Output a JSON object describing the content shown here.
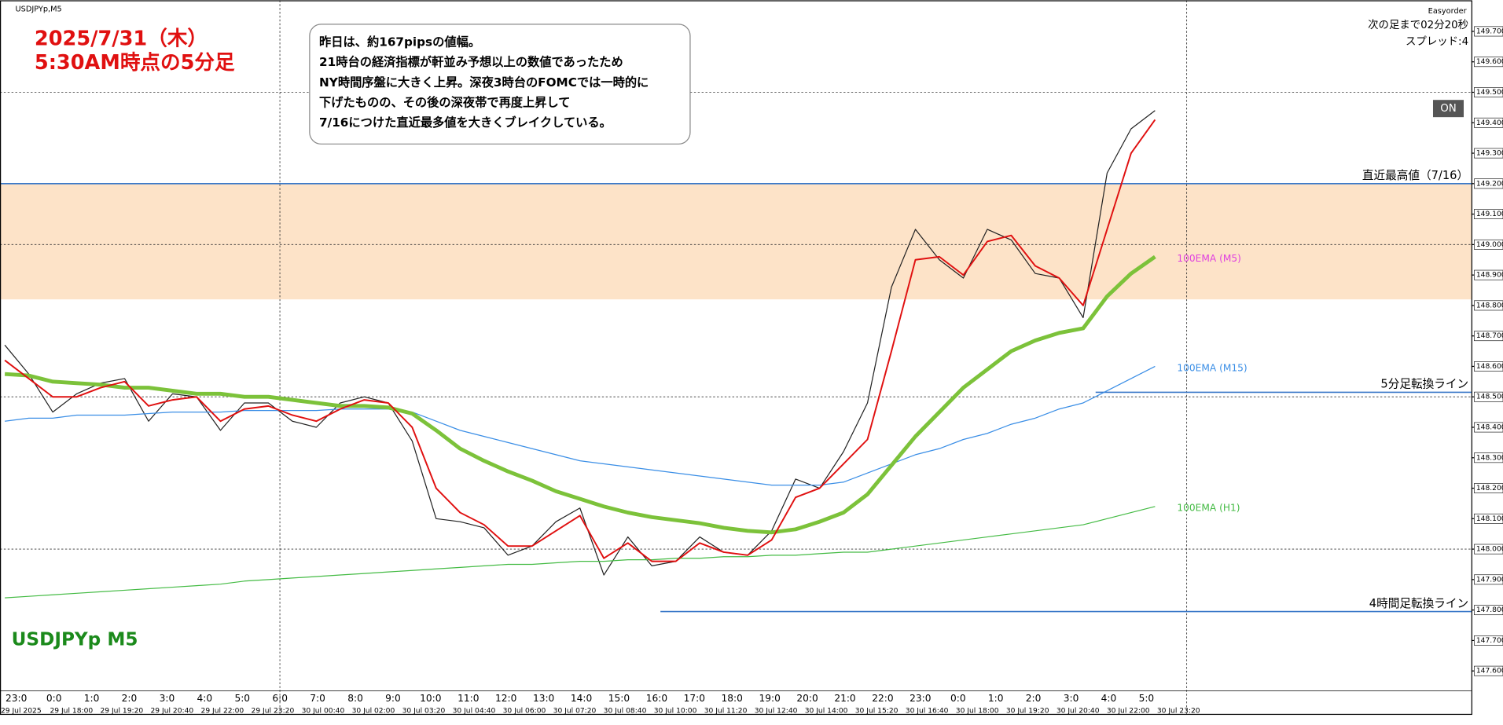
{
  "chart_data": {
    "type": "line",
    "symbol_label": "USDJPYp,M5",
    "title_lines": [
      "2025/7/31（木）",
      "5:30AM時点の5分足"
    ],
    "watermark": "USDJPYp M5",
    "panel_lines": [
      "Easyorder",
      "次の足まで02分20秒",
      "スプレッド:4"
    ],
    "button": "ON",
    "annotation_lines": [
      "昨日は、約167pipsの値幅。",
      "21時台の経済指標が軒並み予想以上の数値であったため",
      "NY時間序盤に大きく上昇。深夜3時台のFOMCでは一時的に",
      "下げたものの、その後の深夜帯で再度上昇して",
      "7/16につけた直近最多値を大きくブレイクしている。"
    ],
    "ylim": [
      147.459,
      149.802
    ],
    "yticks": [
      {
        "value": 149.7,
        "label": "149.700"
      },
      {
        "value": 149.6,
        "label": "149.600"
      },
      {
        "value": 149.5,
        "label": "149.500"
      },
      {
        "value": 149.4,
        "label": "149.400"
      },
      {
        "value": 149.3,
        "label": "149.300"
      },
      {
        "value": 149.2,
        "label": "149.200"
      },
      {
        "value": 149.1,
        "label": "149.100"
      },
      {
        "value": 149.0,
        "label": "149.000"
      },
      {
        "value": 148.9,
        "label": "148.900"
      },
      {
        "value": 148.8,
        "label": "148.800"
      },
      {
        "value": 148.7,
        "label": "148.700"
      },
      {
        "value": 148.6,
        "label": "148.600"
      },
      {
        "value": 148.5,
        "label": "148.500"
      },
      {
        "value": 148.4,
        "label": "148.400"
      },
      {
        "value": 148.3,
        "label": "148.300"
      },
      {
        "value": 148.2,
        "label": "148.200"
      },
      {
        "value": 148.1,
        "label": "148.100"
      },
      {
        "value": 148.0,
        "label": "148.000"
      },
      {
        "value": 147.9,
        "label": "147.900"
      },
      {
        "value": 147.8,
        "label": "147.800"
      },
      {
        "value": 147.7,
        "label": "147.700"
      },
      {
        "value": 147.6,
        "label": "147.600"
      }
    ],
    "dotted_levels": [
      149.5,
      149.0,
      148.5,
      148.0
    ],
    "zone": [
      149.2,
      148.82
    ],
    "zone_color": "#fde3c8",
    "levels": [
      {
        "label": "直近最高値（7/16）",
        "value": 149.2,
        "color": "#3a78c8"
      },
      {
        "label": "5分足転換ライン",
        "value": 148.515,
        "color": "#3a78c8"
      },
      {
        "label": "4時間足転換ライン",
        "value": 147.795,
        "color": "#3a78c8"
      }
    ],
    "time_labels": [
      "23:0",
      "0:0",
      "1:0",
      "2:0",
      "3:0",
      "4:0",
      "5:0",
      "6:0",
      "7:0",
      "8:0",
      "9:0",
      "10:0",
      "11:0",
      "12:0",
      "13:0",
      "14:0",
      "15:0",
      "16:0",
      "17:0",
      "18:0",
      "19:0",
      "20:0",
      "21:0",
      "22:0",
      "23:0",
      "0:0",
      "1:0",
      "2:0",
      "3:0",
      "4:0",
      "5:0"
    ],
    "date_labels": [
      "29 Jul 2025",
      "29 Jul 18:00",
      "29 Jul 19:20",
      "29 Jul 20:40",
      "29 Jul 22:00",
      "29 Jul 23:20",
      "30 Jul 00:40",
      "30 Jul 02:00",
      "30 Jul 03:20",
      "30 Jul 04:40",
      "30 Jul 06:00",
      "30 Jul 07:20",
      "30 Jul 08:40",
      "30 Jul 10:00",
      "30 Jul 11:20",
      "30 Jul 12:40",
      "30 Jul 14:00",
      "30 Jul 15:20",
      "30 Jul 16:40",
      "30 Jul 18:00",
      "30 Jul 19:20",
      "30 Jul 20:40",
      "30 Jul 22:00",
      "30 Jul 23:20"
    ],
    "series": [
      {
        "color": "#222222",
        "width": 1,
        "values": [
          148.67,
          148.575,
          148.45,
          148.51,
          148.545,
          148.56,
          148.42,
          148.51,
          148.5,
          148.39,
          148.48,
          148.48,
          148.42,
          148.4,
          148.48,
          148.5,
          148.48,
          148.355,
          148.1,
          148.09,
          148.07,
          147.98,
          148.01,
          148.09,
          148.135,
          147.915,
          148.04,
          147.945,
          147.96,
          148.04,
          147.99,
          147.98,
          148.06,
          148.23,
          148.2,
          148.32,
          148.48,
          148.86,
          149.05,
          148.95,
          148.89,
          149.05,
          149.015,
          148.905,
          148.89,
          148.76,
          149.235,
          149.38,
          149.44
        ]
      },
      {
        "name": "100EMA (H1)",
        "color": "#44bb44",
        "width": 1,
        "values": [
          147.84,
          147.845,
          147.85,
          147.855,
          147.86,
          147.865,
          147.87,
          147.875,
          147.88,
          147.885,
          147.895,
          147.9,
          147.905,
          147.91,
          147.915,
          147.92,
          147.925,
          147.93,
          147.935,
          147.94,
          147.945,
          147.95,
          147.95,
          147.955,
          147.96,
          147.96,
          147.965,
          147.965,
          147.97,
          147.97,
          147.975,
          147.975,
          147.98,
          147.98,
          147.985,
          147.99,
          147.99,
          148.0,
          148.01,
          148.02,
          148.03,
          148.04,
          148.05,
          148.06,
          148.07,
          148.08,
          148.1,
          148.12,
          148.14
        ]
      },
      {
        "name": "100EMA (M15)",
        "color": "#3a8ee6",
        "width": 1,
        "values": [
          148.42,
          148.43,
          148.43,
          148.44,
          148.44,
          148.44,
          148.445,
          148.45,
          148.45,
          148.45,
          148.455,
          148.455,
          148.455,
          148.455,
          148.46,
          148.46,
          148.46,
          148.45,
          148.42,
          148.39,
          148.37,
          148.35,
          148.33,
          148.31,
          148.29,
          148.28,
          148.27,
          148.26,
          148.25,
          148.24,
          148.23,
          148.22,
          148.21,
          148.21,
          148.21,
          148.22,
          148.25,
          148.28,
          148.31,
          148.33,
          148.36,
          148.38,
          148.41,
          148.43,
          148.46,
          148.48,
          148.52,
          148.56,
          148.6
        ]
      },
      {
        "name": "100EMA (M5)",
        "color": "#7cc23a",
        "label_color": "#e040e0",
        "width": 4,
        "values": [
          148.575,
          148.57,
          148.55,
          148.545,
          148.54,
          148.53,
          148.53,
          148.52,
          148.51,
          148.51,
          148.5,
          148.5,
          148.49,
          148.48,
          148.47,
          148.47,
          148.465,
          148.445,
          148.39,
          148.33,
          148.29,
          148.255,
          148.225,
          148.19,
          148.165,
          148.14,
          148.12,
          148.105,
          148.095,
          148.085,
          148.07,
          148.06,
          148.055,
          148.065,
          148.09,
          148.12,
          148.18,
          148.275,
          148.37,
          148.45,
          148.53,
          148.59,
          148.65,
          148.685,
          148.71,
          148.725,
          148.83,
          148.905,
          148.96
        ]
      },
      {
        "color": "#e01010",
        "width": 1.6,
        "values": [
          148.62,
          148.56,
          148.5,
          148.5,
          148.53,
          148.55,
          148.47,
          148.49,
          148.5,
          148.42,
          148.46,
          148.47,
          148.44,
          148.42,
          148.46,
          148.49,
          148.48,
          148.4,
          148.2,
          148.12,
          148.08,
          148.01,
          148.01,
          148.06,
          148.11,
          147.97,
          148.02,
          147.96,
          147.96,
          148.02,
          147.99,
          147.98,
          148.03,
          148.17,
          148.2,
          148.28,
          148.36,
          148.65,
          148.95,
          148.96,
          148.9,
          149.01,
          149.03,
          148.93,
          148.89,
          148.8,
          149.05,
          149.3,
          149.41
        ]
      }
    ]
  }
}
